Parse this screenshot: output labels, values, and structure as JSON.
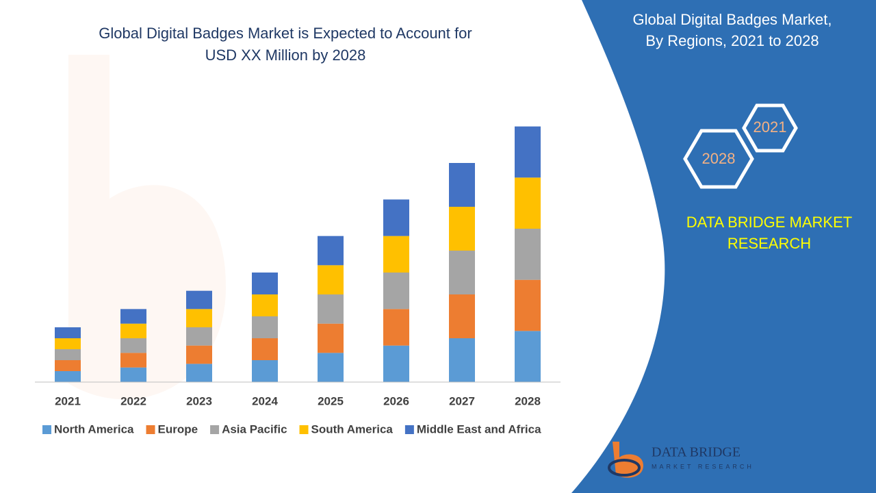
{
  "chart_data": {
    "type": "stacked-bar",
    "title": [
      "Global Digital Badges Market is Expected to Account for",
      "USD XX Million by 2028"
    ],
    "subtitle": [
      "Global Digital Badges Market,",
      "By Regions,  2021 to 2028"
    ],
    "categories": [
      "2021",
      "2022",
      "2023",
      "2024",
      "2025",
      "2026",
      "2027",
      "2028"
    ],
    "series": [
      {
        "name": "North America",
        "color": "#5b9bd5",
        "values": [
          3,
          4,
          5,
          6,
          8,
          10,
          12,
          14
        ]
      },
      {
        "name": "Europe",
        "color": "#ed7d31",
        "values": [
          3,
          4,
          5,
          6,
          8,
          10,
          12,
          14
        ]
      },
      {
        "name": "Asia Pacific",
        "color": "#a5a5a5",
        "values": [
          3,
          4,
          5,
          6,
          8,
          10,
          12,
          14
        ]
      },
      {
        "name": "South America",
        "color": "#ffc000",
        "values": [
          3,
          4,
          5,
          6,
          8,
          10,
          12,
          14
        ]
      },
      {
        "name": "Middle East and Africa",
        "color": "#4472c4",
        "values": [
          3,
          4,
          5,
          6,
          8,
          10,
          12,
          14
        ]
      }
    ],
    "ylim": [
      0,
      75
    ],
    "legend": "bottom",
    "annotations": {
      "hexagon_start": "2021",
      "hexagon_end": "2028",
      "brand": [
        "DATA BRIDGE MARKET",
        "RESEARCH"
      ],
      "logo": [
        "DATA BRIDGE",
        "MARKET RESEARCH"
      ]
    }
  }
}
